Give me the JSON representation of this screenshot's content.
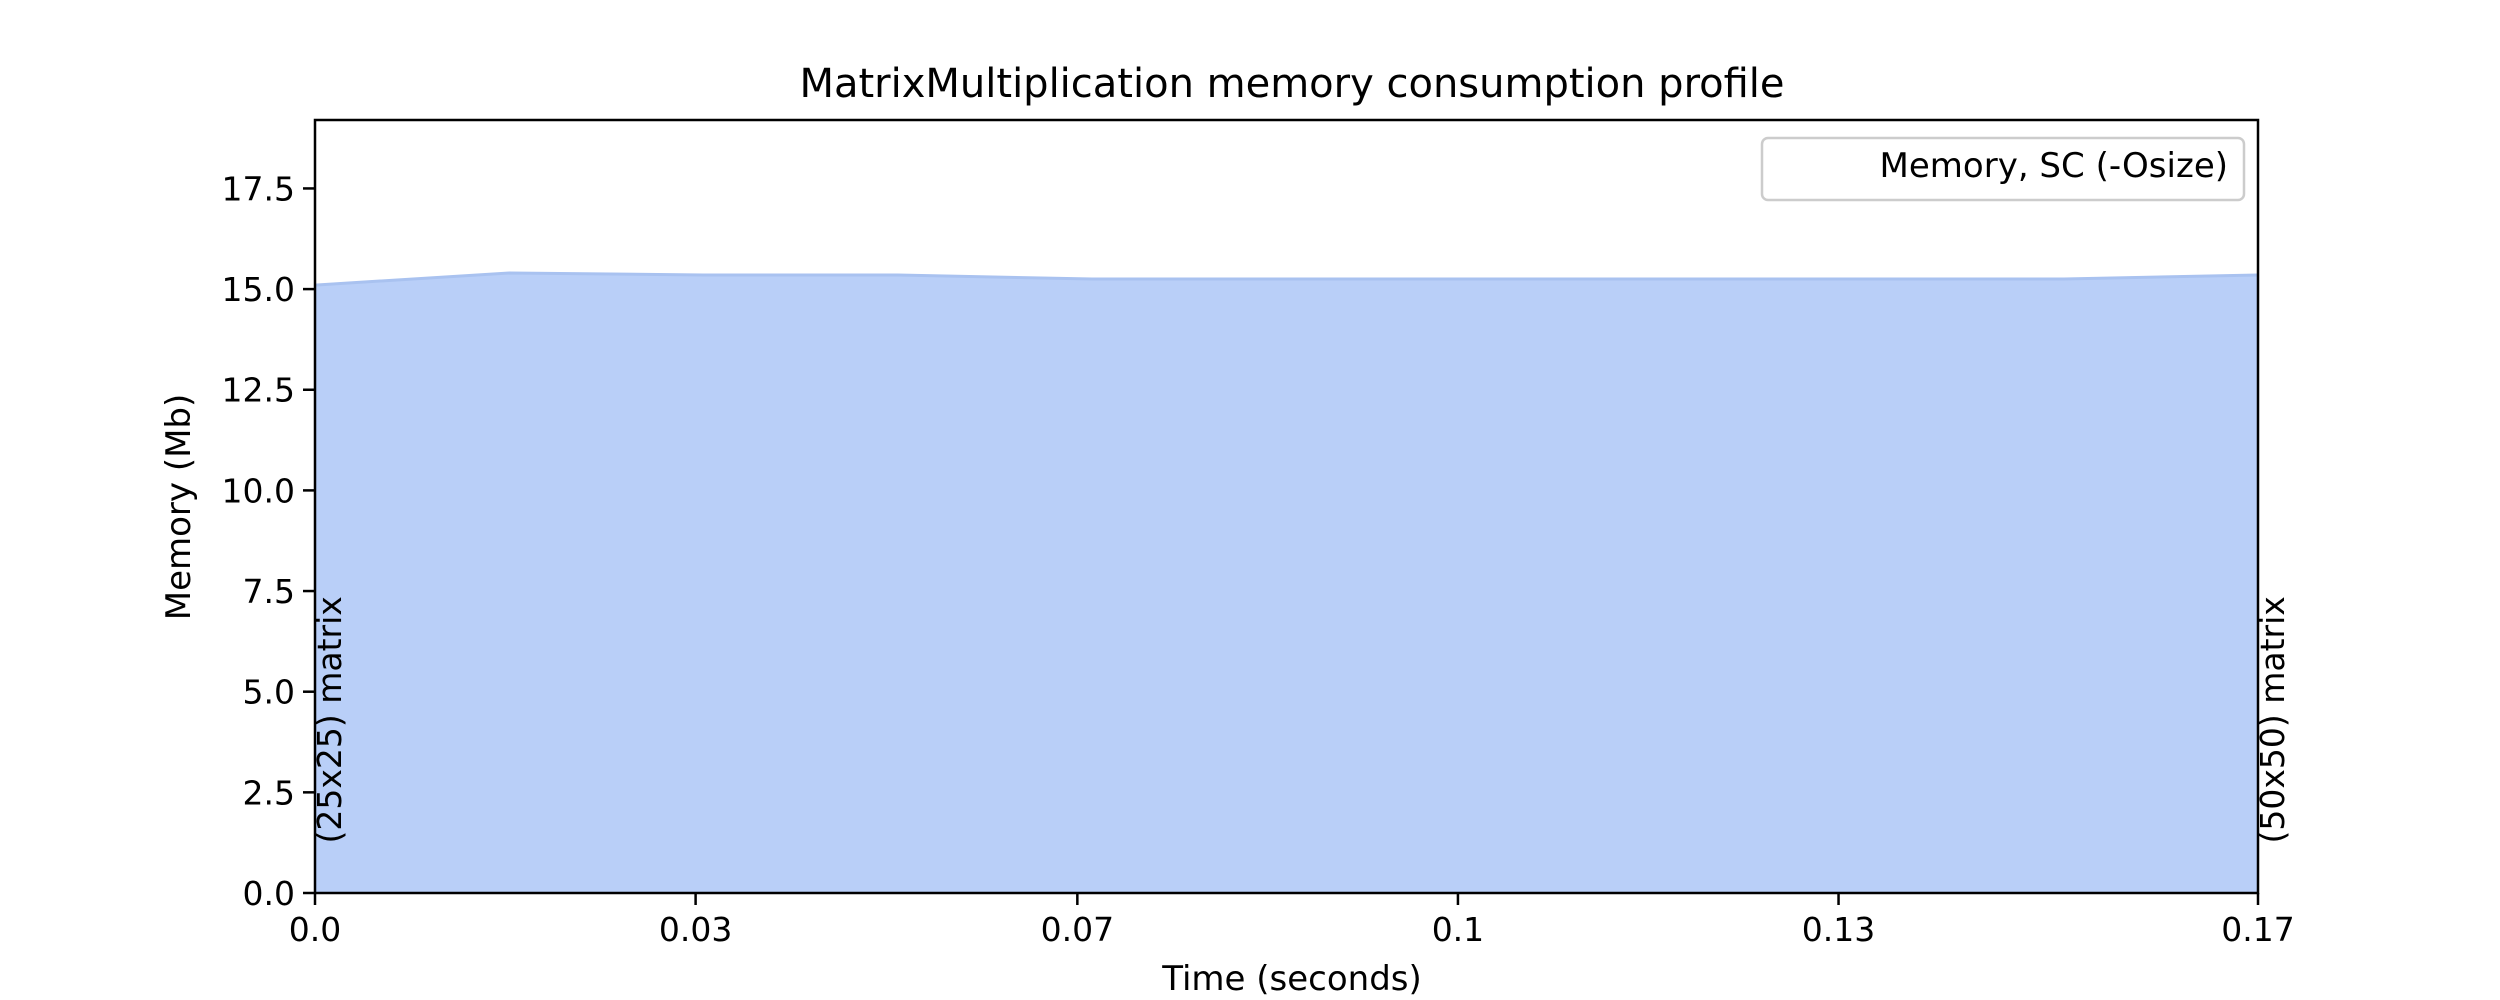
{
  "chart_data": {
    "type": "area",
    "title": "MatrixMultiplication memory consumption profile",
    "xlabel": "Time (seconds)",
    "ylabel": "Memory (Mb)",
    "xlim": [
      0.0,
      0.17
    ],
    "ylim": [
      0.0,
      19.2
    ],
    "x_ticks": [
      {
        "value": 0.0,
        "label": "0.0"
      },
      {
        "value": 0.0333,
        "label": "0.03"
      },
      {
        "value": 0.0667,
        "label": "0.07"
      },
      {
        "value": 0.1,
        "label": "0.1"
      },
      {
        "value": 0.1333,
        "label": "0.13"
      },
      {
        "value": 0.17,
        "label": "0.17"
      }
    ],
    "y_ticks": [
      {
        "value": 0.0,
        "label": "0.0"
      },
      {
        "value": 2.5,
        "label": "2.5"
      },
      {
        "value": 5.0,
        "label": "5.0"
      },
      {
        "value": 7.5,
        "label": "7.5"
      },
      {
        "value": 10.0,
        "label": "10.0"
      },
      {
        "value": 12.5,
        "label": "12.5"
      },
      {
        "value": 15.0,
        "label": "15.0"
      },
      {
        "value": 17.5,
        "label": "17.5"
      }
    ],
    "grid": false,
    "legend": {
      "position": "top-right",
      "entries": [
        "Memory, SC (-Osize)"
      ]
    },
    "series": [
      {
        "name": "Memory, SC (-Osize)",
        "color": "#b9cff8",
        "edge_color": "#a9c2f0",
        "x": [
          0.0,
          0.017,
          0.034,
          0.051,
          0.068,
          0.085,
          0.102,
          0.119,
          0.136,
          0.153,
          0.17
        ],
        "values": [
          15.1,
          15.4,
          15.35,
          15.35,
          15.25,
          15.25,
          15.25,
          15.25,
          15.25,
          15.25,
          15.35
        ]
      }
    ],
    "annotations": [
      {
        "x": 0.0,
        "y": 4.3,
        "text": "(25x25) matrix",
        "rotation": 90
      },
      {
        "x": 0.17,
        "y": 4.3,
        "text": "(50x50) matrix",
        "rotation": 90
      }
    ]
  }
}
